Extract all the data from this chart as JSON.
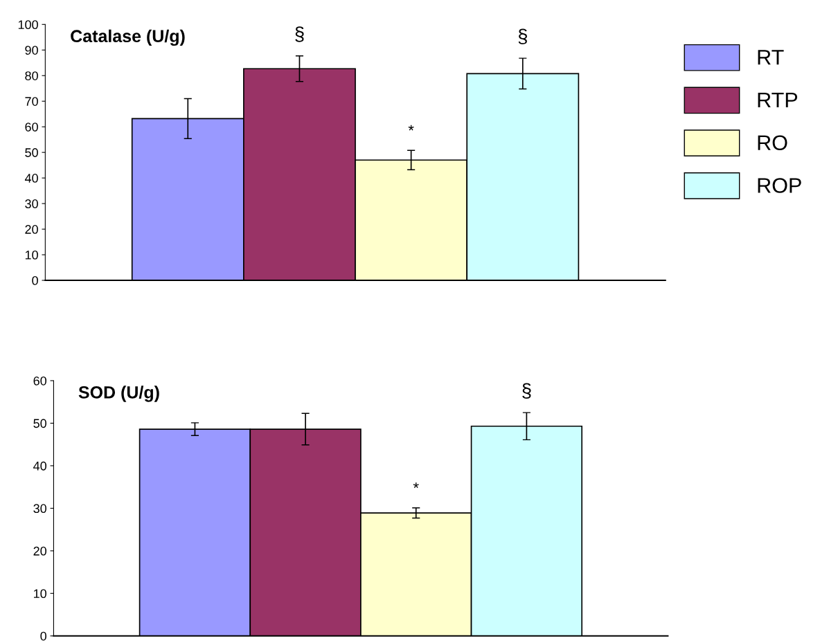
{
  "chart_data": [
    {
      "type": "bar",
      "title": "Catalase (U/g)",
      "categories": [
        null
      ],
      "ylim": [
        0,
        100
      ],
      "yticks": [
        0,
        10,
        20,
        30,
        40,
        50,
        60,
        70,
        80,
        90,
        100
      ],
      "grid": false,
      "legend": "right",
      "series": [
        {
          "name": "RT",
          "color": "#9999ff",
          "values": [
            63.2
          ],
          "errors": [
            7.8
          ]
        },
        {
          "name": "RTP",
          "color": "#993366",
          "values": [
            82.7
          ],
          "errors": [
            5
          ],
          "value_labels": [
            "§"
          ]
        },
        {
          "name": "RO",
          "color": "#ffffcc",
          "values": [
            47
          ],
          "errors": [
            3.8
          ],
          "value_labels": [
            "*"
          ]
        },
        {
          "name": "ROP",
          "color": "#ccffff",
          "values": [
            80.8
          ],
          "errors": [
            6
          ],
          "value_labels": [
            "§"
          ]
        }
      ]
    },
    {
      "type": "bar",
      "title": "SOD (U/g)",
      "categories": [
        null
      ],
      "ylim": [
        0,
        60
      ],
      "yticks": [
        0,
        10,
        20,
        30,
        40,
        50,
        60
      ],
      "grid": false,
      "series": [
        {
          "color": "#9999ff",
          "values": [
            48.6
          ],
          "errors": [
            1.5
          ]
        },
        {
          "color": "#993366",
          "values": [
            48.6
          ],
          "errors": [
            3.7
          ]
        },
        {
          "color": "#ffffcc",
          "values": [
            28.9
          ],
          "errors": [
            1.2
          ],
          "value_labels": [
            "*"
          ]
        },
        {
          "color": "#ccffff",
          "values": [
            49.3
          ],
          "errors": [
            3.2
          ],
          "value_labels": [
            "§"
          ]
        }
      ]
    }
  ]
}
